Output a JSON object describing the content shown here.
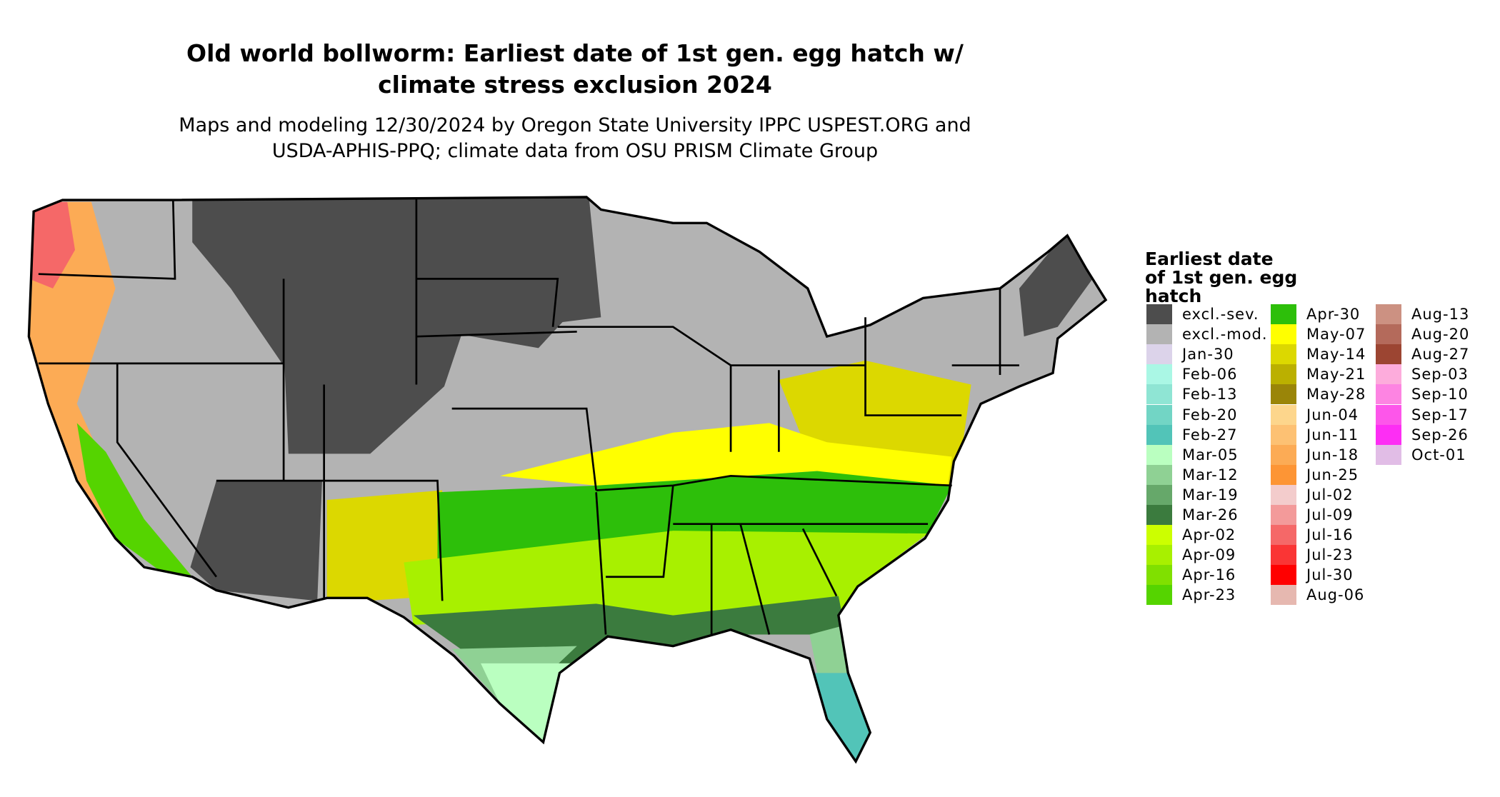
{
  "title": {
    "line1": "Old world bollworm: Earliest date of 1st gen. egg hatch w/",
    "line2": "climate stress exclusion 2024"
  },
  "subtitle": {
    "line1": "Maps and modeling 12/30/2024 by Oregon State University IPPC USPEST.ORG and",
    "line2": "USDA-APHIS-PPQ; climate data from OSU PRISM Climate Group"
  },
  "legend": {
    "title_lines": [
      "Earliest date",
      "of 1st gen. egg",
      "hatch"
    ],
    "columns": [
      [
        {
          "label": "excl.-sev.",
          "color": "#4d4d4d"
        },
        {
          "label": "excl.-mod.",
          "color": "#b3b3b3"
        },
        {
          "label": "Jan-30",
          "color": "#dcd3ea"
        },
        {
          "label": "Feb-06",
          "color": "#aaf7e5"
        },
        {
          "label": "Feb-13",
          "color": "#8fe5d4"
        },
        {
          "label": "Feb-20",
          "color": "#72d5c5"
        },
        {
          "label": "Feb-27",
          "color": "#52c4b8"
        },
        {
          "label": "Mar-05",
          "color": "#baffc0"
        },
        {
          "label": "Mar-12",
          "color": "#8fd194"
        },
        {
          "label": "Mar-19",
          "color": "#66a86a"
        },
        {
          "label": "Mar-26",
          "color": "#3b7b3e"
        },
        {
          "label": "Apr-02",
          "color": "#ccff00"
        },
        {
          "label": "Apr-09",
          "color": "#a8f000"
        },
        {
          "label": "Apr-16",
          "color": "#80e000"
        },
        {
          "label": "Apr-23",
          "color": "#55d400"
        }
      ],
      [
        {
          "label": "Apr-30",
          "color": "#2dbf0a"
        },
        {
          "label": "May-07",
          "color": "#ffff00"
        },
        {
          "label": "May-14",
          "color": "#dcd800"
        },
        {
          "label": "May-21",
          "color": "#bbb000"
        },
        {
          "label": "May-28",
          "color": "#9a8508"
        },
        {
          "label": "Jun-04",
          "color": "#fdd68c"
        },
        {
          "label": "Jun-11",
          "color": "#fdc173"
        },
        {
          "label": "Jun-18",
          "color": "#fcab55"
        },
        {
          "label": "Jun-25",
          "color": "#fd9535"
        },
        {
          "label": "Jul-02",
          "color": "#f3cccc"
        },
        {
          "label": "Jul-09",
          "color": "#f39a9a"
        },
        {
          "label": "Jul-16",
          "color": "#f56868"
        },
        {
          "label": "Jul-23",
          "color": "#fa3535"
        },
        {
          "label": "Jul-30",
          "color": "#ff0000"
        },
        {
          "label": "Aug-06",
          "color": "#e6b8b0"
        }
      ],
      [
        {
          "label": "Aug-13",
          "color": "#cc9182"
        },
        {
          "label": "Aug-20",
          "color": "#b46a5b"
        },
        {
          "label": "Aug-27",
          "color": "#9c4532"
        },
        {
          "label": "Sep-03",
          "color": "#fdacdc"
        },
        {
          "label": "Sep-10",
          "color": "#fd84e2"
        },
        {
          "label": "Sep-17",
          "color": "#fd56ea"
        },
        {
          "label": "Sep-26",
          "color": "#fd2ef4"
        },
        {
          "label": "Oct-01",
          "color": "#e1bde6"
        }
      ]
    ]
  }
}
